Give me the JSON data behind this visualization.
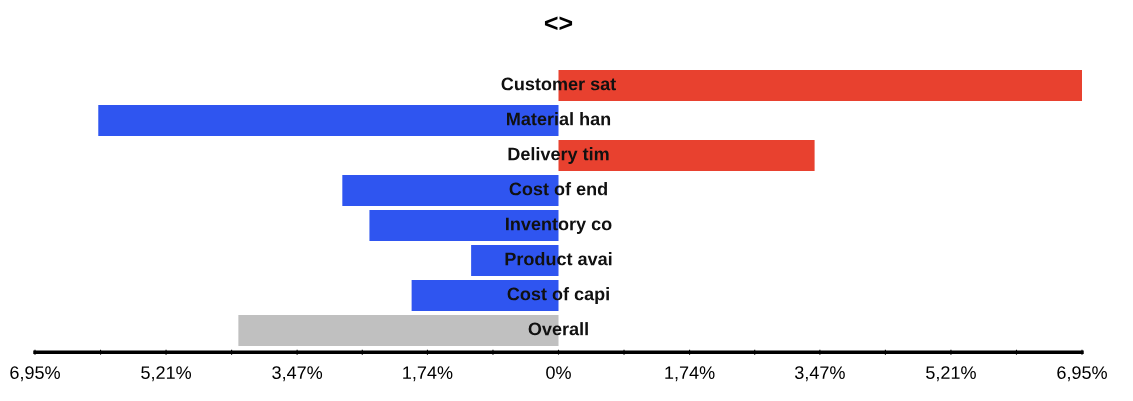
{
  "chart_data": {
    "type": "bar",
    "orientation": "horizontal",
    "title": "<>",
    "categories": [
      "Customer sat",
      "Material han",
      "Delivery tim",
      "Cost of end",
      "Inventory co",
      "Product avai",
      "Cost of capi",
      "Overall"
    ],
    "values": [
      6.95,
      -6.11,
      3.4,
      -2.87,
      -2.51,
      -1.16,
      -1.95,
      -4.25
    ],
    "colors": [
      "#e8412f",
      "#2f55f0",
      "#e8412f",
      "#2f55f0",
      "#2f55f0",
      "#2f55f0",
      "#2f55f0",
      "#c0c0c0"
    ],
    "xlim": [
      -6.95,
      6.95
    ],
    "xticks": [
      {
        "value": -6.95,
        "label": "6,95%"
      },
      {
        "value": -6.08,
        "label": null
      },
      {
        "value": -5.21,
        "label": "5,21%"
      },
      {
        "value": -4.34,
        "label": null
      },
      {
        "value": -3.47,
        "label": "3,47%"
      },
      {
        "value": -2.605,
        "label": null
      },
      {
        "value": -1.74,
        "label": "1,74%"
      },
      {
        "value": -0.87,
        "label": null
      },
      {
        "value": 0,
        "label": "0%"
      },
      {
        "value": 0.87,
        "label": null
      },
      {
        "value": 1.74,
        "label": "1,74%"
      },
      {
        "value": 2.605,
        "label": null
      },
      {
        "value": 3.47,
        "label": "3,47%"
      },
      {
        "value": 4.34,
        "label": null
      },
      {
        "value": 5.21,
        "label": "5,21%"
      },
      {
        "value": 6.08,
        "label": null
      },
      {
        "value": 6.95,
        "label": "6,95%"
      }
    ],
    "tick_labels": "x",
    "grid": false
  }
}
